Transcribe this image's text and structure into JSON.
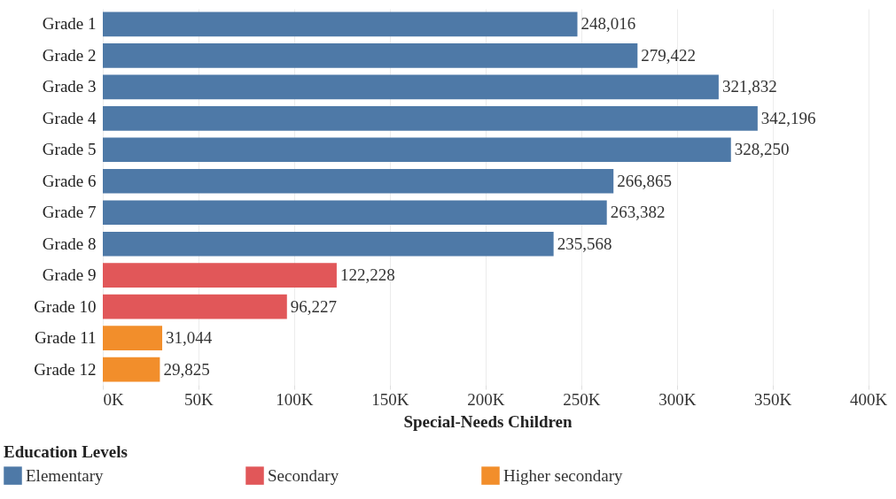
{
  "chart_data": {
    "type": "bar",
    "orientation": "horizontal",
    "xlabel": "Special-Needs Children",
    "legend_title": "Education Levels",
    "categories": [
      "Grade 1",
      "Grade 2",
      "Grade 3",
      "Grade 4",
      "Grade 5",
      "Grade 6",
      "Grade 7",
      "Grade 8",
      "Grade 9",
      "Grade 10",
      "Grade 11",
      "Grade 12"
    ],
    "series": [
      {
        "name": "Elementary",
        "color": "#4e79a7",
        "values": [
          248016,
          279422,
          321832,
          342196,
          328250,
          266865,
          263382,
          235568,
          null,
          null,
          null,
          null
        ],
        "value_labels": [
          "248,016",
          "279,422",
          "321,832",
          "342,196",
          "328,250",
          "266,865",
          "263,382",
          "235,568",
          null,
          null,
          null,
          null
        ]
      },
      {
        "name": "Secondary",
        "color": "#e15759",
        "values": [
          null,
          null,
          null,
          null,
          null,
          null,
          null,
          null,
          122228,
          96227,
          null,
          null
        ],
        "value_labels": [
          null,
          null,
          null,
          null,
          null,
          null,
          null,
          null,
          "122,228",
          "96,227",
          null,
          null
        ]
      },
      {
        "name": "Higher secondary",
        "color": "#f28e2b",
        "values": [
          null,
          null,
          null,
          null,
          null,
          null,
          null,
          null,
          null,
          null,
          31044,
          29825
        ],
        "value_labels": [
          null,
          null,
          null,
          null,
          null,
          null,
          null,
          null,
          null,
          null,
          "31,044",
          "29,825"
        ]
      }
    ],
    "xlim": [
      0,
      402000
    ],
    "xticks": [
      {
        "value": 0,
        "label": "0K"
      },
      {
        "value": 50000,
        "label": "50K"
      },
      {
        "value": 100000,
        "label": "100K"
      },
      {
        "value": 150000,
        "label": "150K"
      },
      {
        "value": 200000,
        "label": "200K"
      },
      {
        "value": 250000,
        "label": "250K"
      },
      {
        "value": 300000,
        "label": "300K"
      },
      {
        "value": 350000,
        "label": "350K"
      },
      {
        "value": 400000,
        "label": "400K"
      }
    ],
    "grid": "x",
    "legend": "bottom"
  }
}
